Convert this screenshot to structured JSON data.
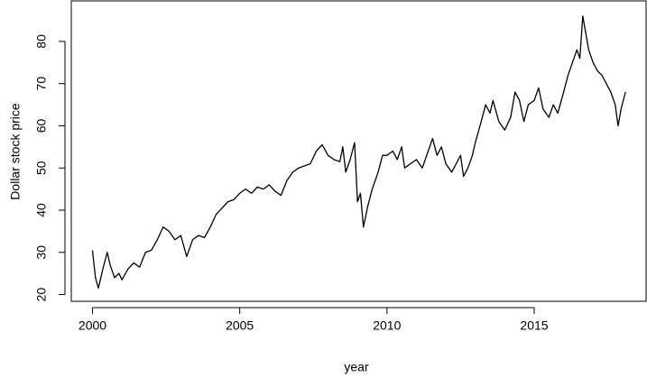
{
  "chart_data": {
    "type": "line",
    "x_label": "year",
    "y_label": "Dollar stock price",
    "x": [
      2000.0,
      2000.1,
      2000.2,
      2000.35,
      2000.5,
      2000.6,
      2000.75,
      2000.9,
      2001.0,
      2001.2,
      2001.4,
      2001.6,
      2001.8,
      2002.0,
      2002.2,
      2002.4,
      2002.6,
      2002.8,
      2003.0,
      2003.2,
      2003.4,
      2003.6,
      2003.8,
      2004.0,
      2004.2,
      2004.4,
      2004.6,
      2004.8,
      2005.0,
      2005.2,
      2005.4,
      2005.6,
      2005.8,
      2006.0,
      2006.2,
      2006.4,
      2006.6,
      2006.8,
      2007.0,
      2007.2,
      2007.4,
      2007.6,
      2007.8,
      2008.0,
      2008.2,
      2008.4,
      2008.5,
      2008.6,
      2008.75,
      2008.9,
      2009.0,
      2009.1,
      2009.2,
      2009.35,
      2009.5,
      2009.7,
      2009.85,
      2010.0,
      2010.2,
      2010.35,
      2010.5,
      2010.6,
      2010.8,
      2011.0,
      2011.2,
      2011.4,
      2011.55,
      2011.7,
      2011.85,
      2012.0,
      2012.2,
      2012.35,
      2012.5,
      2012.6,
      2012.75,
      2012.9,
      2013.0,
      2013.2,
      2013.35,
      2013.5,
      2013.6,
      2013.8,
      2014.0,
      2014.2,
      2014.35,
      2014.5,
      2014.65,
      2014.8,
      2015.0,
      2015.15,
      2015.3,
      2015.5,
      2015.65,
      2015.8,
      2016.0,
      2016.15,
      2016.3,
      2016.45,
      2016.55,
      2016.65,
      2016.75,
      2016.85,
      2017.0,
      2017.15,
      2017.3,
      2017.45,
      2017.6,
      2017.75,
      2017.85,
      2017.95,
      2018.1
    ],
    "series": [
      {
        "color": "#000000",
        "values": [
          30.5,
          24,
          21.5,
          26,
          30,
          27,
          24,
          25,
          23.5,
          26,
          27.5,
          26.5,
          30,
          30.5,
          33,
          36,
          35,
          33,
          34,
          29,
          33,
          34,
          33.5,
          36,
          39,
          40.5,
          42,
          42.5,
          44,
          45,
          44,
          45.5,
          45,
          46,
          44.5,
          43.5,
          47,
          49,
          50,
          50.5,
          51,
          54,
          55.5,
          53,
          52,
          51.5,
          55,
          49,
          52,
          56,
          42,
          44,
          36,
          41,
          45,
          49,
          53,
          53,
          54,
          52,
          55,
          50,
          51,
          52,
          50,
          54,
          57,
          53,
          55,
          51,
          49,
          51,
          53,
          48,
          50,
          53,
          56,
          61,
          65,
          63,
          66,
          61,
          59,
          62,
          68,
          66,
          61,
          65,
          66,
          69,
          64,
          62,
          65,
          63,
          68,
          72,
          75,
          78,
          76,
          86,
          82,
          78,
          75,
          73,
          72,
          70,
          68,
          65,
          60,
          64,
          68
        ]
      }
    ],
    "xlim": [
      1999.28,
      2018.8
    ],
    "xticks": [
      2000,
      2005,
      2010,
      2015
    ],
    "ylim": [
      18.4,
      89.6
    ],
    "yticks": [
      20,
      30,
      40,
      50,
      60,
      70,
      80
    ]
  }
}
